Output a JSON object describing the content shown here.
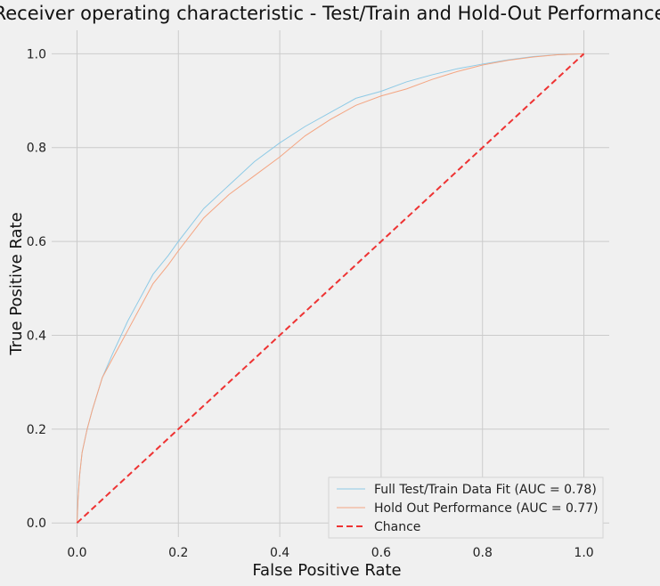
{
  "chart_data": {
    "type": "line",
    "title": "Receiver operating characteristic - Test/Train and Hold-Out Performance",
    "xlabel": "False Positive Rate",
    "ylabel": "True Positive Rate",
    "xlim": [
      -0.05,
      1.05
    ],
    "ylim": [
      -0.03,
      1.05
    ],
    "xticks": [
      "0.0",
      "0.2",
      "0.4",
      "0.6",
      "0.8",
      "1.0"
    ],
    "yticks": [
      "0.0",
      "0.2",
      "0.4",
      "0.6",
      "0.8",
      "1.0"
    ],
    "grid": true,
    "legend_position": "lower-right",
    "series": [
      {
        "name": "Full Test/Train Data Fit (AUC = 0.78)",
        "color": "#8ecae6",
        "style": "solid",
        "x": [
          0,
          0.002,
          0.005,
          0.01,
          0.02,
          0.03,
          0.05,
          0.07,
          0.1,
          0.12,
          0.15,
          0.18,
          0.2,
          0.25,
          0.3,
          0.35,
          0.4,
          0.45,
          0.5,
          0.55,
          0.6,
          0.65,
          0.7,
          0.75,
          0.8,
          0.85,
          0.9,
          0.95,
          1.0
        ],
        "y": [
          0,
          0.05,
          0.1,
          0.15,
          0.2,
          0.24,
          0.31,
          0.36,
          0.43,
          0.47,
          0.53,
          0.57,
          0.6,
          0.67,
          0.72,
          0.77,
          0.81,
          0.845,
          0.875,
          0.905,
          0.92,
          0.94,
          0.955,
          0.968,
          0.978,
          0.987,
          0.994,
          0.998,
          1.0
        ]
      },
      {
        "name": "Hold Out Performance (AUC = 0.77)",
        "color": "#f4a582",
        "style": "solid",
        "x": [
          0,
          0.002,
          0.005,
          0.01,
          0.02,
          0.03,
          0.05,
          0.07,
          0.1,
          0.12,
          0.15,
          0.18,
          0.2,
          0.25,
          0.3,
          0.35,
          0.4,
          0.45,
          0.5,
          0.55,
          0.6,
          0.65,
          0.7,
          0.75,
          0.8,
          0.85,
          0.9,
          0.95,
          1.0
        ],
        "y": [
          0,
          0.05,
          0.1,
          0.15,
          0.2,
          0.24,
          0.31,
          0.35,
          0.41,
          0.45,
          0.51,
          0.55,
          0.58,
          0.65,
          0.7,
          0.74,
          0.78,
          0.825,
          0.86,
          0.89,
          0.91,
          0.925,
          0.945,
          0.962,
          0.976,
          0.986,
          0.993,
          0.998,
          1.0
        ]
      },
      {
        "name": "Chance",
        "color": "#ee3333",
        "style": "dashed",
        "x": [
          0,
          1
        ],
        "y": [
          0,
          1
        ]
      }
    ]
  }
}
